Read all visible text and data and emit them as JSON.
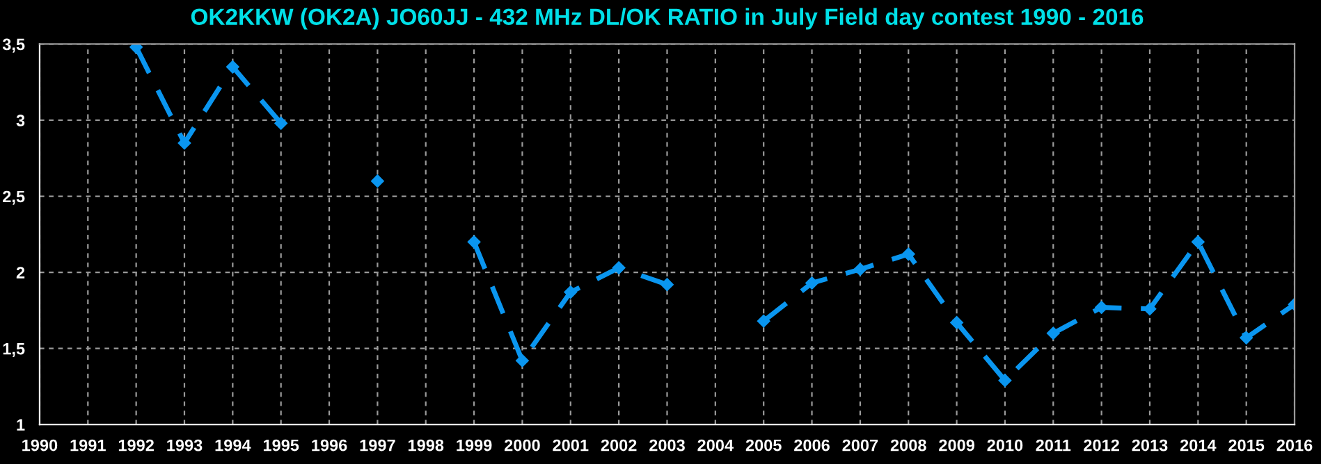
{
  "chart_data": {
    "type": "line",
    "title": "OK2KKW (OK2A) JO60JJ - 432 MHz DL/OK RATIO in July Field day contest 1990 - 2016",
    "categories": [
      "1990",
      "1991",
      "1992",
      "1993",
      "1994",
      "1995",
      "1996",
      "1997",
      "1998",
      "1999",
      "2000",
      "2001",
      "2002",
      "2003",
      "2004",
      "2005",
      "2006",
      "2007",
      "2008",
      "2009",
      "2010",
      "2011",
      "2012",
      "2013",
      "2014",
      "2015",
      "2016"
    ],
    "series": [
      {
        "color": "#0a96f0",
        "values": [
          null,
          null,
          3.48,
          2.85,
          3.35,
          2.98,
          null,
          2.6,
          null,
          2.2,
          1.42,
          1.87,
          2.03,
          1.92,
          null,
          1.68,
          1.93,
          2.02,
          2.12,
          1.67,
          1.29,
          1.6,
          1.77,
          1.76,
          2.2,
          1.57,
          1.79
        ]
      }
    ],
    "ylim": [
      1,
      3.5
    ],
    "yticks": [
      1,
      {
        "value": 1.5,
        "label": "1,5"
      },
      2,
      {
        "value": 2.5,
        "label": "2,5"
      },
      3,
      {
        "value": 3.5,
        "label": "3,5"
      }
    ],
    "grid": true,
    "marker": "diamond",
    "line_style": "dashed",
    "legend": false
  }
}
